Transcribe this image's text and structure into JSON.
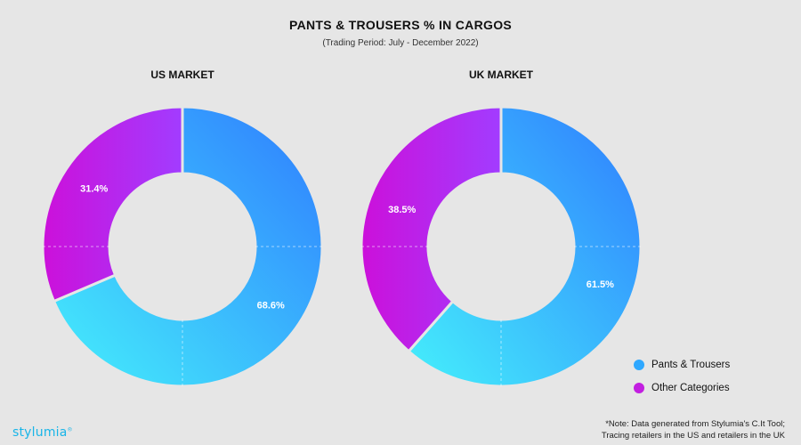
{
  "title": "PANTS & TROUSERS % IN CARGOS",
  "subtitle": "(Trading Period: July - December 2022)",
  "colors": {
    "pants_gradient": [
      "#45f0fb",
      "#2f7cff"
    ],
    "other_gradient": [
      "#cc10da",
      "#a23cff"
    ],
    "background": "#e6e6e6"
  },
  "chart_data": [
    {
      "type": "pie",
      "title": "US MARKET",
      "categories": [
        "Pants & Trousers",
        "Other Categories"
      ],
      "values": [
        68.6,
        31.4
      ],
      "labels": [
        "68.6%",
        "31.4%"
      ]
    },
    {
      "type": "pie",
      "title": "UK MARKET",
      "categories": [
        "Pants & Trousers",
        "Other Categories"
      ],
      "values": [
        61.5,
        38.5
      ],
      "labels": [
        "61.5%",
        "38.5%"
      ]
    }
  ],
  "legend": [
    {
      "label": "Pants & Trousers",
      "color": "#2fa8ff"
    },
    {
      "label": "Other Categories",
      "color": "#c21fe0"
    }
  ],
  "logo": {
    "text": "stylumia",
    "mark": "®"
  },
  "note": {
    "line1": "*Note: Data generated from Stylumia's C.It Tool;",
    "line2": "Tracing retailers in the US and retailers in the UK"
  }
}
